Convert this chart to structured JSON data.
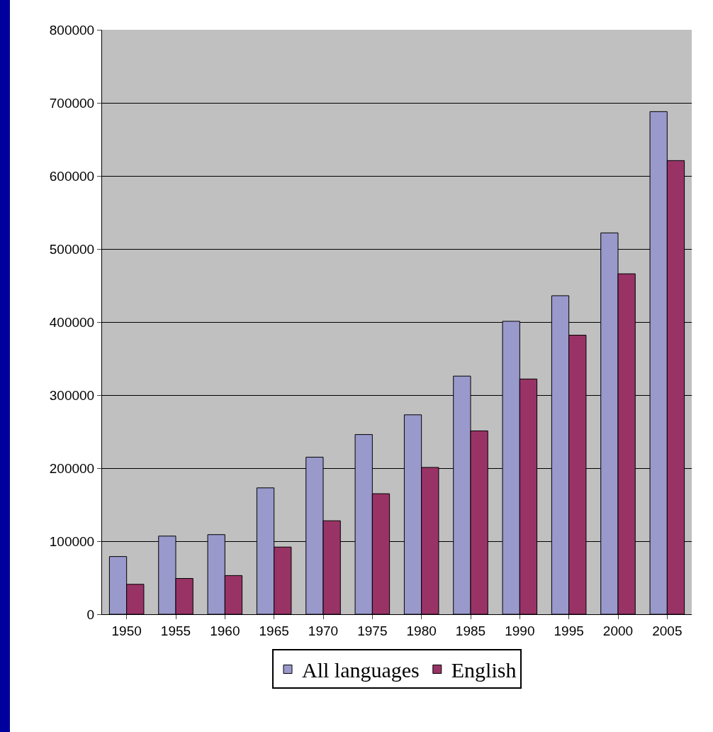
{
  "chart_data": {
    "type": "bar",
    "categories": [
      "1950",
      "1955",
      "1960",
      "1965",
      "1970",
      "1975",
      "1980",
      "1985",
      "1990",
      "1995",
      "2000",
      "2005"
    ],
    "series": [
      {
        "name": "All languages",
        "color": "#9999cc",
        "values": [
          79000,
          107000,
          109000,
          173000,
          215000,
          246000,
          273000,
          326000,
          401000,
          436000,
          522000,
          688000
        ]
      },
      {
        "name": "English",
        "color": "#993366",
        "values": [
          41000,
          49000,
          53000,
          92000,
          128000,
          165000,
          201000,
          251000,
          322000,
          382000,
          466000,
          621000
        ]
      }
    ],
    "ylim": [
      0,
      800000
    ],
    "yticks": [
      0,
      100000,
      200000,
      300000,
      400000,
      500000,
      600000,
      700000,
      800000
    ],
    "grid": "y",
    "legend": "bottom"
  }
}
